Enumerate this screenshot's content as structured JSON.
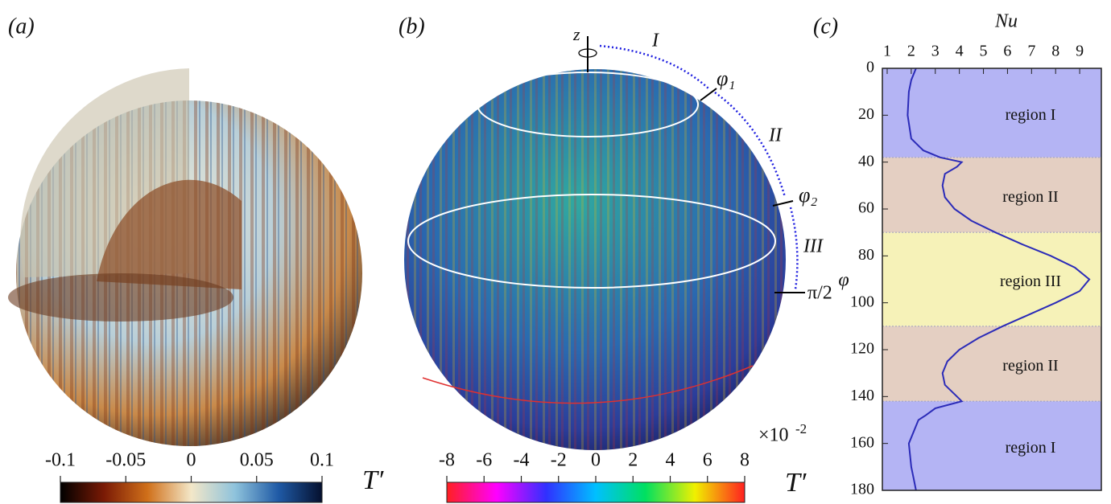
{
  "chart_data": [
    {
      "type": "colorbar",
      "panel_label": "(a)",
      "title": "T′",
      "lim": [
        -0.1,
        0.1
      ],
      "ticks": [
        -0.1,
        -0.05,
        0,
        0.05,
        0.1
      ],
      "colors": [
        "#000000",
        "#7a1a05",
        "#d0701a",
        "#f3e7c8",
        "#8fc3dc",
        "#1f5aa6",
        "#05102e"
      ]
    },
    {
      "type": "colorbar",
      "panel_label": "(b)",
      "title": "T′",
      "lim": [
        -8,
        8
      ],
      "ticks": [
        -8,
        -6,
        -4,
        -2,
        0,
        2,
        4,
        6,
        8
      ],
      "multiplier": "×10",
      "exponent": -2,
      "colors": [
        "#ff2020",
        "#ff00ff",
        "#3030ff",
        "#00c0ff",
        "#00e060",
        "#f0f000",
        "#ff2020"
      ],
      "annotations": {
        "axis": "z",
        "zone1": "I",
        "boundary1": "φ₁",
        "zone2": "II",
        "boundary2": "φ₂",
        "zone3": "III",
        "equator": "π/2"
      }
    },
    {
      "type": "line",
      "panel_label": "(c)",
      "x_label": "Nu",
      "y_label": "φ",
      "xlim": [
        0.8,
        9.9
      ],
      "xticks": [
        1,
        2,
        3,
        4,
        5,
        6,
        7,
        8,
        9
      ],
      "ylim": [
        0,
        180
      ],
      "yticks": [
        0,
        20,
        40,
        60,
        80,
        100,
        120,
        140,
        160,
        180
      ],
      "color": "#2b2bb8",
      "y": [
        0,
        5,
        10,
        20,
        30,
        35,
        38,
        40,
        42,
        45,
        50,
        55,
        60,
        65,
        70,
        75,
        80,
        85,
        90,
        95,
        100,
        105,
        110,
        115,
        120,
        125,
        130,
        135,
        140,
        142,
        145,
        148,
        150,
        160,
        170,
        175,
        180
      ],
      "values": [
        2.2,
        2.0,
        1.9,
        1.85,
        2.0,
        2.5,
        3.2,
        4.1,
        3.9,
        3.4,
        3.3,
        3.4,
        3.8,
        4.5,
        5.5,
        6.6,
        7.8,
        8.8,
        9.4,
        9.0,
        8.0,
        6.9,
        5.8,
        4.8,
        4.0,
        3.5,
        3.3,
        3.4,
        3.9,
        4.1,
        3.0,
        2.6,
        2.3,
        1.9,
        2.0,
        2.1,
        2.2
      ],
      "regions": [
        {
          "label": "region I",
          "from": 0,
          "to": 38,
          "color": "#b4b4f4"
        },
        {
          "label": "region II",
          "from": 38,
          "to": 70,
          "color": "#e4cfc2"
        },
        {
          "label": "region III",
          "from": 70,
          "to": 110,
          "color": "#f6f2b8"
        },
        {
          "label": "region II",
          "from": 110,
          "to": 142,
          "color": "#e4cfc2"
        },
        {
          "label": "region I",
          "from": 142,
          "to": 180,
          "color": "#b4b4f4"
        }
      ]
    }
  ]
}
